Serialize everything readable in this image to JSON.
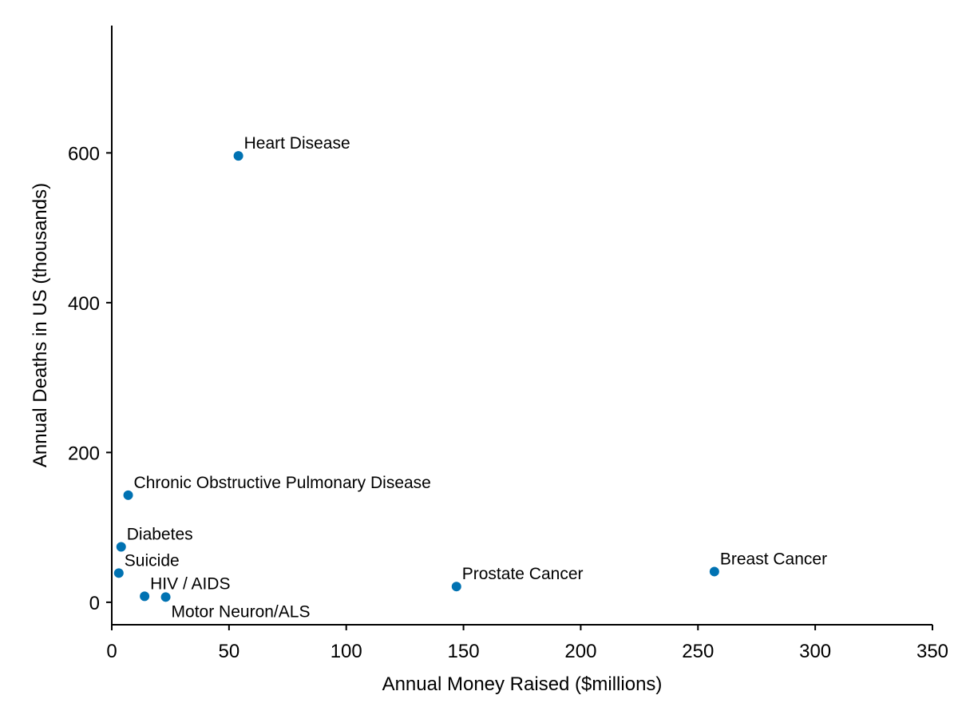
{
  "chart_data": {
    "type": "scatter",
    "title": "",
    "xlabel": "Annual Money Raised ($millions)",
    "ylabel": "Annual Deaths in US (thousands)",
    "xlim": [
      0,
      350
    ],
    "ylim": [
      -30,
      770
    ],
    "xticks": [
      0,
      50,
      100,
      150,
      200,
      250,
      300,
      350
    ],
    "yticks": [
      0,
      200,
      400,
      600
    ],
    "grid": false,
    "marker_color": "#0072b2",
    "points": [
      {
        "label": "Heart Disease",
        "x": 54,
        "y": 596,
        "label_pos": "above-right"
      },
      {
        "label": "Chronic Obstructive Pulmonary Disease",
        "x": 7,
        "y": 143,
        "label_pos": "above-right"
      },
      {
        "label": "Diabetes",
        "x": 4,
        "y": 74,
        "label_pos": "above-right"
      },
      {
        "label": "Suicide",
        "x": 3,
        "y": 39,
        "label_pos": "above-right"
      },
      {
        "label": "HIV / AIDS",
        "x": 14,
        "y": 8,
        "label_pos": "above-right"
      },
      {
        "label": "Motor Neuron/ALS",
        "x": 23,
        "y": 7,
        "label_pos": "below-right"
      },
      {
        "label": "Prostate Cancer",
        "x": 147,
        "y": 21,
        "label_pos": "above-right"
      },
      {
        "label": "Breast Cancer",
        "x": 257,
        "y": 41,
        "label_pos": "above-right"
      }
    ]
  }
}
